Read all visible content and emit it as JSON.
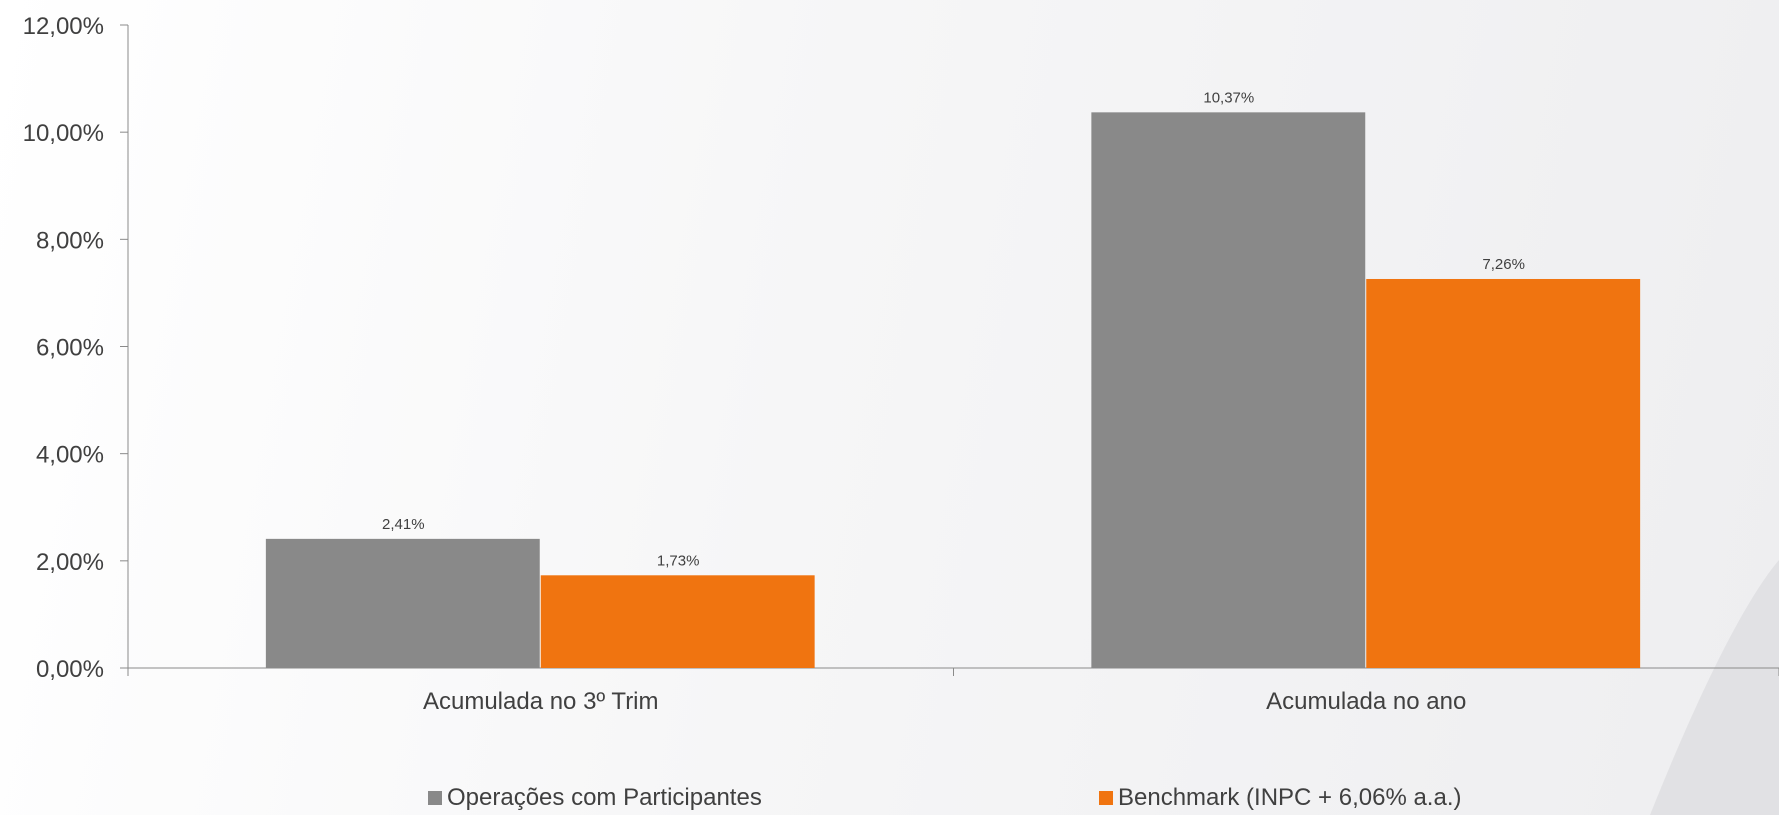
{
  "chart_data": {
    "type": "bar",
    "categories": [
      "Acumulada no 3º Trim",
      "Acumulada no ano"
    ],
    "series": [
      {
        "name": "Operações com Participantes",
        "values": [
          2.41,
          10.37
        ],
        "labels": [
          "2,41%",
          "10,37%"
        ],
        "color": "#898989"
      },
      {
        "name": "Benchmark (INPC + 6,06% a.a.)",
        "values": [
          1.73,
          7.26
        ],
        "labels": [
          "1,73%",
          "7,26%"
        ],
        "color": "#f07410"
      }
    ],
    "ylim": [
      0,
      12
    ],
    "yticks": [
      0,
      2,
      4,
      6,
      8,
      10,
      12
    ],
    "ytick_labels": [
      "0,00%",
      "2,00%",
      "4,00%",
      "6,00%",
      "8,00%",
      "10,00%",
      "12,00%"
    ],
    "grid": false,
    "legend_position": "bottom"
  }
}
